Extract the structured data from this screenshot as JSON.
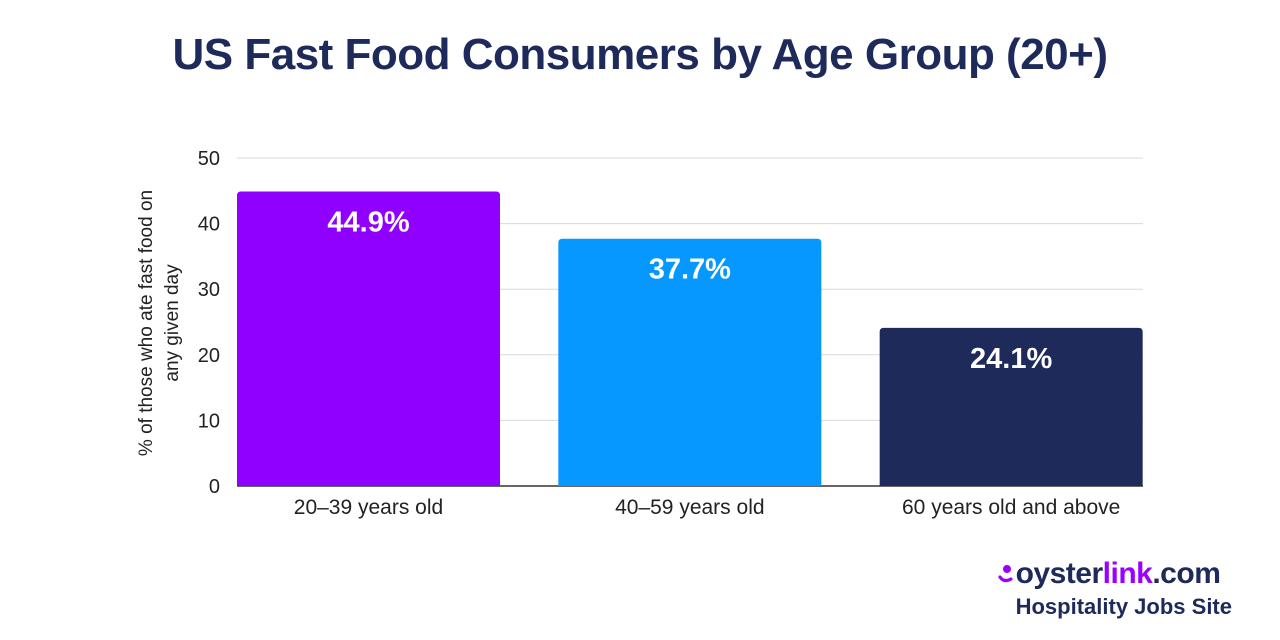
{
  "chart_data": {
    "type": "bar",
    "title": "US Fast Food Consumers by Age Group (20+)",
    "ylabel": "% of those who ate fast food on any given day",
    "xlabel": "",
    "ylim": [
      0,
      50
    ],
    "yticks": [
      0,
      10,
      20,
      30,
      40,
      50
    ],
    "grid": true,
    "categories": [
      "20–39 years old",
      "40–59 years old",
      "60 years old and above"
    ],
    "values": [
      44.9,
      37.7,
      24.1
    ],
    "value_labels": [
      "44.9%",
      "37.7%",
      "24.1%"
    ],
    "colors": [
      "#9000ff",
      "#0698ff",
      "#1e2a5a"
    ]
  },
  "branding": {
    "logo_part1": "oyster",
    "logo_part2": "link",
    "logo_part3": ".com",
    "tagline": "Hospitality Jobs Site",
    "accent_color": "#9b00ff",
    "brand_color": "#1e2a5a"
  }
}
